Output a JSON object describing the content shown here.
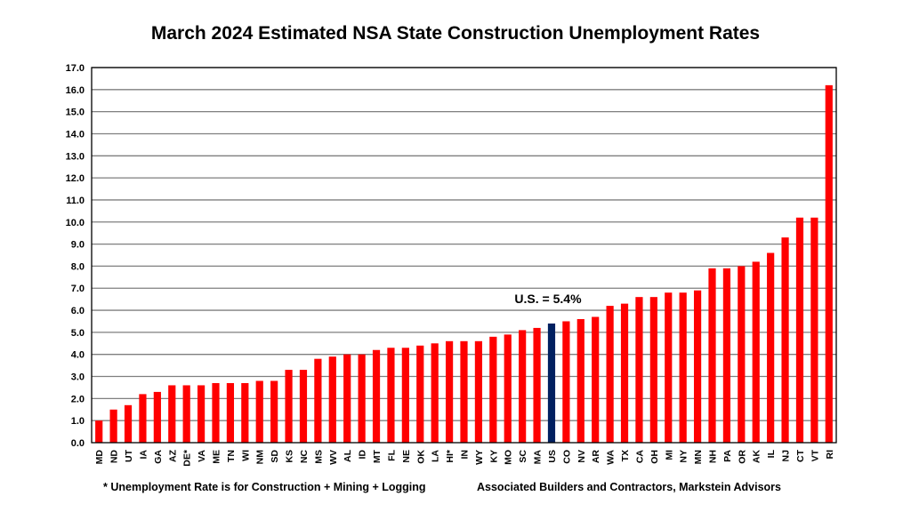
{
  "chart_data": {
    "type": "bar",
    "title": "March 2024 Estimated NSA State Construction Unemployment Rates",
    "xlabel": "",
    "ylabel": "",
    "ylim": [
      0,
      17
    ],
    "ytick_step": 1,
    "grid": true,
    "categories": [
      "MD",
      "ND",
      "UT",
      "IA",
      "GA",
      "AZ",
      "DE*",
      "VA",
      "ME",
      "TN",
      "WI",
      "NM",
      "SD",
      "KS",
      "NC",
      "MS",
      "WV",
      "AL",
      "ID",
      "MT",
      "FL",
      "NE",
      "OK",
      "LA",
      "HI*",
      "IN",
      "WY",
      "KY",
      "MO",
      "SC",
      "MA",
      "US",
      "CO",
      "NV",
      "AR",
      "WA",
      "TX",
      "CA",
      "OH",
      "MI",
      "NY",
      "MN",
      "NH",
      "PA",
      "OR",
      "AK",
      "IL",
      "NJ",
      "CT",
      "VT",
      "RI"
    ],
    "values": [
      1.0,
      1.5,
      1.7,
      2.2,
      2.3,
      2.6,
      2.6,
      2.6,
      2.7,
      2.7,
      2.7,
      2.8,
      2.8,
      3.3,
      3.3,
      3.8,
      3.9,
      4.0,
      4.0,
      4.2,
      4.3,
      4.3,
      4.4,
      4.5,
      4.6,
      4.6,
      4.6,
      4.8,
      4.9,
      5.1,
      5.2,
      5.4,
      5.5,
      5.6,
      5.7,
      6.2,
      6.3,
      6.6,
      6.6,
      6.8,
      6.8,
      6.9,
      7.9,
      7.9,
      8.0,
      8.2,
      8.6,
      9.3,
      10.2,
      10.2,
      16.2
    ],
    "highlight_category": "US",
    "colors": {
      "bar": "#ff0000",
      "highlight": "#002060",
      "grid": "#7f7f7f"
    },
    "annotation": "U.S. = 5.4%"
  },
  "footnote": "* Unemployment Rate is for Construction + Mining + Logging",
  "source": "Associated Builders and Contractors, Markstein Advisors"
}
